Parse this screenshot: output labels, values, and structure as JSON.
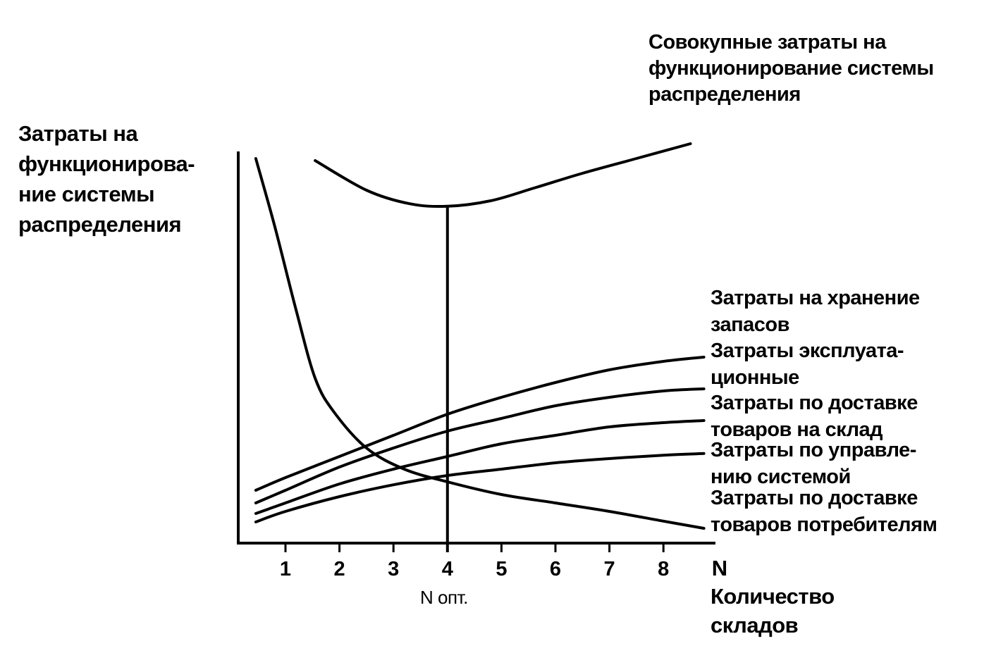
{
  "chart_data": {
    "type": "line",
    "ylabel_lines": [
      "Затраты на",
      "функционирова-",
      "ние системы",
      "распределения"
    ],
    "xlabel_lines": [
      "Количество",
      "складов"
    ],
    "x_axis_symbol": "N",
    "x_ticks": [
      1,
      2,
      3,
      4,
      5,
      6,
      7,
      8
    ],
    "xlim": [
      0.3,
      9
    ],
    "ylim": [
      0,
      10
    ],
    "grid": false,
    "optimum": {
      "x": 4,
      "label": "N опт."
    },
    "series": [
      {
        "name_lines": [
          "Совокупные затраты на",
          "функционирование системы",
          "распределения"
        ],
        "x": [
          1.55,
          2.5,
          3.3,
          4.0,
          4.8,
          5.6,
          6.5,
          7.5,
          8.5
        ],
        "y": [
          9.05,
          8.35,
          8.03,
          7.97,
          8.1,
          8.4,
          8.75,
          9.1,
          9.45
        ]
      },
      {
        "name_lines": [
          "Затраты на хранение",
          "запасов"
        ],
        "x": [
          0.45,
          1.0,
          2.0,
          3.0,
          4.0,
          5.0,
          6.0,
          7.0,
          8.0,
          8.75
        ],
        "y": [
          1.25,
          1.55,
          2.05,
          2.55,
          3.05,
          3.45,
          3.8,
          4.1,
          4.3,
          4.4
        ]
      },
      {
        "name_lines": [
          "Затраты эксплуата-",
          "ционные"
        ],
        "x": [
          0.45,
          1.0,
          2.0,
          3.0,
          4.0,
          5.0,
          6.0,
          7.0,
          8.0,
          8.75
        ],
        "y": [
          0.95,
          1.25,
          1.8,
          2.25,
          2.65,
          2.95,
          3.25,
          3.45,
          3.6,
          3.65
        ]
      },
      {
        "name_lines": [
          "Затраты по доставке",
          "товаров на склад"
        ],
        "x": [
          0.45,
          1.0,
          2.0,
          3.0,
          4.0,
          5.0,
          6.0,
          7.0,
          8.0,
          8.75
        ],
        "y": [
          0.7,
          0.95,
          1.4,
          1.75,
          2.05,
          2.35,
          2.55,
          2.75,
          2.85,
          2.9
        ]
      },
      {
        "name_lines": [
          "Затраты по управле-",
          "нию системой"
        ],
        "x": [
          0.45,
          1.0,
          2.0,
          3.0,
          4.0,
          5.0,
          6.0,
          7.0,
          8.0,
          8.75
        ],
        "y": [
          0.5,
          0.75,
          1.1,
          1.38,
          1.6,
          1.75,
          1.9,
          2.0,
          2.08,
          2.12
        ]
      },
      {
        "name_lines": [
          "Затраты по доставке",
          "товаров потребителям"
        ],
        "x": [
          0.45,
          0.8,
          1.2,
          1.55,
          1.9,
          2.5,
          3.2,
          4.0,
          5.0,
          6.0,
          7.0,
          8.0,
          8.75
        ],
        "y": [
          9.1,
          7.5,
          5.5,
          3.9,
          3.1,
          2.25,
          1.75,
          1.45,
          1.15,
          0.95,
          0.75,
          0.52,
          0.35
        ]
      }
    ]
  }
}
